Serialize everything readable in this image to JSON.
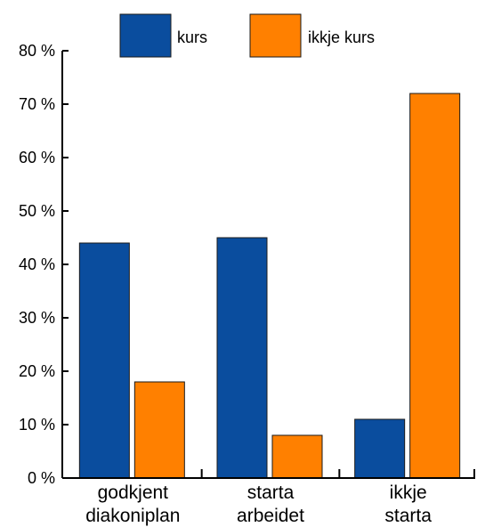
{
  "chart_data": {
    "type": "bar",
    "categories": [
      [
        "godkjent",
        "diakoniplan"
      ],
      [
        "starta",
        "arbeidet"
      ],
      [
        "ikkje",
        "starta"
      ]
    ],
    "series": [
      {
        "name": "kurs",
        "values": [
          44,
          45,
          11
        ],
        "color": "#0a4d9e"
      },
      {
        "name": "ikkje kurs",
        "values": [
          18,
          8,
          72
        ],
        "color": "#ff8000"
      }
    ],
    "ylim": [
      0,
      80
    ],
    "yticks": [
      0,
      10,
      20,
      30,
      40,
      50,
      60,
      70,
      80
    ],
    "ytick_labels": [
      "0 %",
      "10 %",
      "20 %",
      "30 %",
      "40 %",
      "50 %",
      "60 %",
      "70 %",
      "80 %"
    ],
    "grid": false,
    "legend_position": "top-center"
  }
}
